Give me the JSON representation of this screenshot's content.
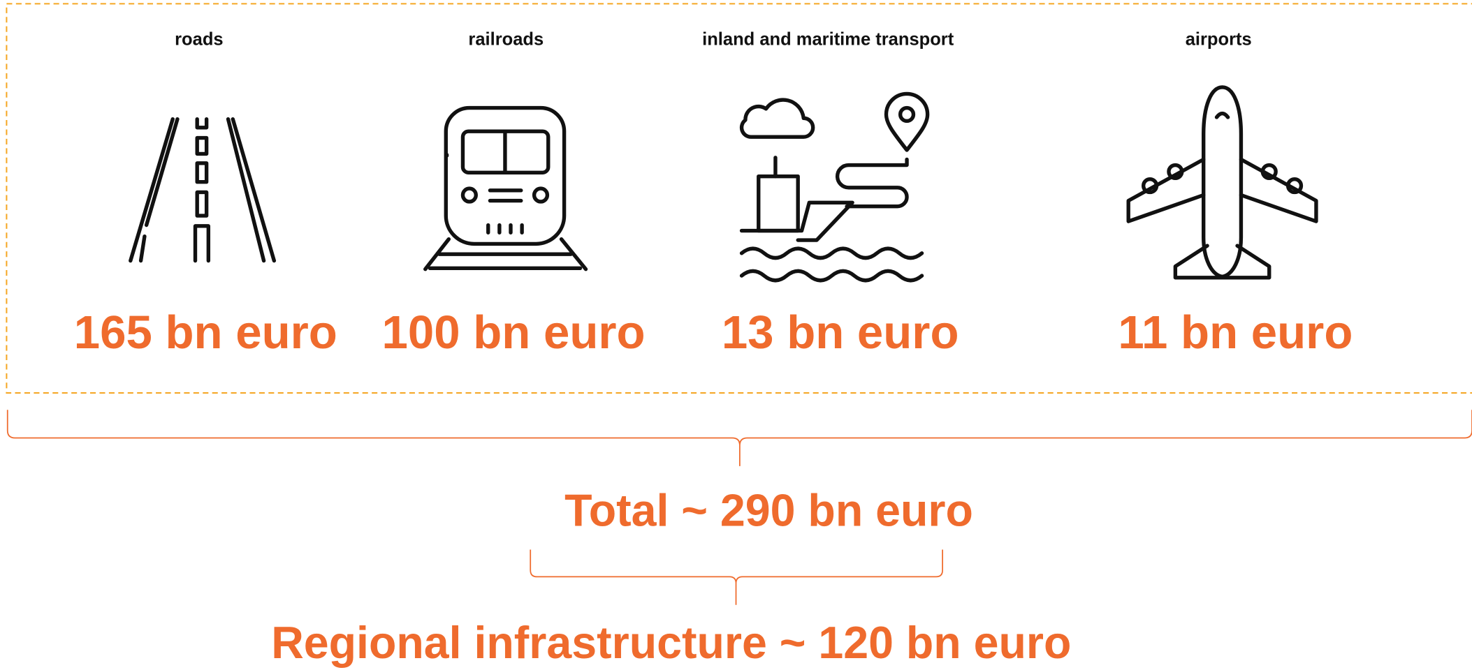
{
  "items": [
    {
      "label": "roads",
      "amount": "165 bn euro"
    },
    {
      "label": "railroads",
      "amount": "100 bn euro"
    },
    {
      "label": "inland and maritime transport",
      "amount": "13 bn euro"
    },
    {
      "label": "airports",
      "amount": "11 bn euro"
    }
  ],
  "total": "Total ~ 290 bn euro",
  "regional": "Regional infrastructure ~ 120 bn euro"
}
